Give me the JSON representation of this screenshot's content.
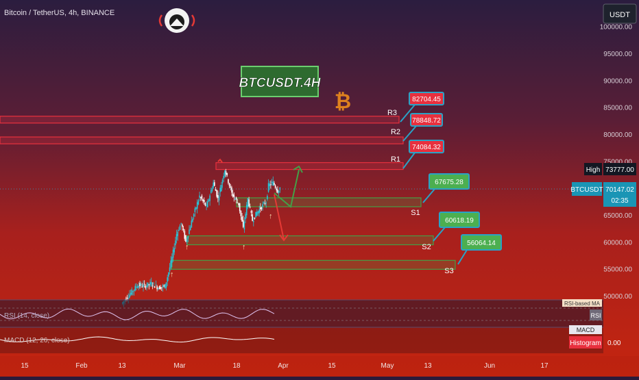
{
  "header": {
    "symbol_title": "Bitcoin / TetherUS, 4h, BINANCE",
    "currency_button": "USDT"
  },
  "chart_title_box": "BTCUSDT.4H",
  "bitcoin_symbol": "₿",
  "colors": {
    "resistance": "#e8303e",
    "support": "#43a047",
    "label_border": "#29a3c7",
    "candle_up": "#26c6da",
    "candle_down": "#ffffff",
    "arrow_up": "#43a047",
    "arrow_down": "#e53935"
  },
  "price_axis": {
    "ticks": [
      {
        "value": 100000,
        "label": "100000.00"
      },
      {
        "value": 95000,
        "label": "95000.00"
      },
      {
        "value": 90000,
        "label": "90000.00"
      },
      {
        "value": 85000,
        "label": "85000.00"
      },
      {
        "value": 80000,
        "label": "80000.00"
      },
      {
        "value": 75000,
        "label": "75000.00"
      },
      {
        "value": 65000,
        "label": "65000.00"
      },
      {
        "value": 60000,
        "label": "60000.00"
      },
      {
        "value": 55000,
        "label": "55000.00"
      },
      {
        "value": 50000,
        "label": "50000.00"
      }
    ],
    "high_label": "High",
    "high_value": "73777.00",
    "current_symbol": "BTCUSDT",
    "current_price": "70147.02",
    "countdown": "02:35"
  },
  "time_axis": {
    "ticks": [
      "15",
      "Feb",
      "13",
      "Mar",
      "18",
      "Apr",
      "15",
      "May",
      "13",
      "Jun",
      "17"
    ]
  },
  "chart_data": {
    "type": "candlestick",
    "levels": [
      {
        "name": "R3",
        "price_label": "82704.45",
        "kind": "resistance",
        "value": 82704.45
      },
      {
        "name": "R2",
        "price_label": "78848.72",
        "kind": "resistance",
        "value": 78848.72
      },
      {
        "name": "R1",
        "price_label": "74084.32",
        "kind": "resistance",
        "value": 74084.32
      },
      {
        "name": "S1",
        "price_label": "67675.28",
        "kind": "support",
        "value": 67675.28
      },
      {
        "name": "S2",
        "price_label": "60618.19",
        "kind": "support",
        "value": 60618.19
      },
      {
        "name": "S3",
        "price_label": "56064.14",
        "kind": "support",
        "value": 56064.14
      }
    ],
    "price_path": [
      [
        0,
        48500
      ],
      [
        4,
        50500
      ],
      [
        7,
        52000
      ],
      [
        10,
        51800
      ],
      [
        13,
        52300
      ],
      [
        16,
        51500
      ],
      [
        19,
        51800
      ],
      [
        22,
        57000
      ],
      [
        24,
        61500
      ],
      [
        26,
        63500
      ],
      [
        28,
        60000
      ],
      [
        31,
        64500
      ],
      [
        34,
        68500
      ],
      [
        37,
        66500
      ],
      [
        40,
        71000
      ],
      [
        42,
        68000
      ],
      [
        45,
        73500
      ],
      [
        48,
        69000
      ],
      [
        51,
        67000
      ],
      [
        53,
        62500
      ],
      [
        55,
        68000
      ],
      [
        57,
        64000
      ],
      [
        59,
        65500
      ],
      [
        61,
        66500
      ],
      [
        63,
        67500
      ],
      [
        64,
        70500
      ],
      [
        66,
        71000
      ],
      [
        68,
        69500
      ],
      [
        69,
        70100
      ]
    ]
  },
  "indicators": {
    "rsi_label": "RSI (14, close)",
    "rsi_badge": "RSI",
    "rsi_overlay": "RSI-based MA",
    "macd_label": "MACD (12, 26, close)",
    "macd_badge": "MACD",
    "histogram_badge": "Histogram",
    "macd_value": "0.00"
  }
}
